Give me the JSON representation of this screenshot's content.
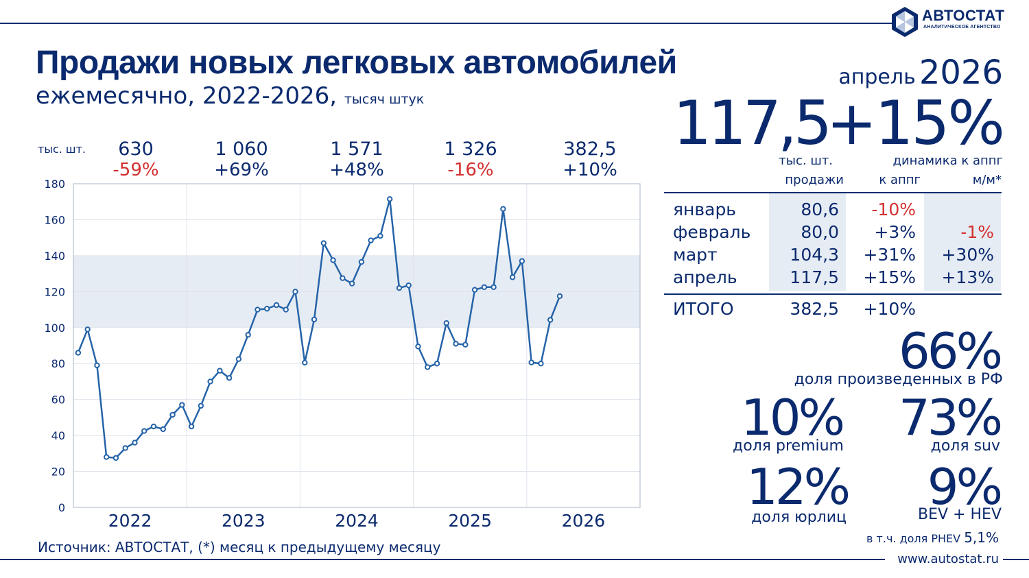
{
  "brand": {
    "name": "АВТОСТАТ",
    "tagline": "АНАЛИТИЧЕСКОЕ АГЕНТСТВО",
    "color": "#0b2a6e",
    "accent": "#2563a8",
    "negative_color": "#d32f2f"
  },
  "header": {
    "title": "Продажи новых легковых автомобилей",
    "subtitle": "ежемесячно, 2022-2026,",
    "units": "тысяч штук",
    "period_month": "апрель",
    "period_year": "2026"
  },
  "year_totals": {
    "units": "тыс. шт.",
    "items": [
      {
        "value": "630",
        "change": "-59%",
        "negative": true
      },
      {
        "value": "1 060",
        "change": "+69%",
        "negative": false
      },
      {
        "value": "1 571",
        "change": "+48%",
        "negative": false
      },
      {
        "value": "1 326",
        "change": "-16%",
        "negative": true
      },
      {
        "value": "382,5",
        "change": "+10%",
        "negative": false
      }
    ]
  },
  "chart_data": {
    "type": "line",
    "ylim": [
      0,
      180
    ],
    "y_ticks": [
      "0",
      "20",
      "40",
      "60",
      "80",
      "100",
      "120",
      "140",
      "160",
      "180"
    ],
    "year_labels": [
      "2022",
      "2023",
      "2024",
      "2025",
      "2026"
    ],
    "band": [
      100,
      140
    ],
    "grid": true,
    "values": [
      86,
      99,
      79,
      28,
      27.5,
      33,
      36,
      42.5,
      45,
      43.5,
      51.5,
      57,
      45,
      56.5,
      70,
      76,
      72,
      82.5,
      96,
      110,
      110.5,
      112.5,
      110,
      120,
      80.5,
      104.5,
      147,
      137.5,
      127.5,
      124.5,
      136.5,
      148.5,
      151,
      171.5,
      122,
      123.5,
      89.5,
      78,
      80,
      102.5,
      91,
      90.5,
      121,
      122.5,
      122.5,
      166,
      128,
      137,
      80.6,
      80.0,
      104.3,
      117.5
    ]
  },
  "kpi": {
    "sales_value": "117,5",
    "sales_units": "тыс. шт.",
    "growth_value": "+15%",
    "growth_label": "динамика к аппг"
  },
  "table": {
    "headers": [
      "продажи",
      "к аппг",
      "м/м*"
    ],
    "rows": [
      {
        "name": "январь",
        "value": "80,6",
        "yoy": "-10%",
        "yoy_negative": true,
        "mom": "",
        "mom_negative": false
      },
      {
        "name": "февраль",
        "value": "80,0",
        "yoy": "+3%",
        "yoy_negative": false,
        "mom": "-1%",
        "mom_negative": true
      },
      {
        "name": "март",
        "value": "104,3",
        "yoy": "+31%",
        "yoy_negative": false,
        "mom": "+30%",
        "mom_negative": false
      },
      {
        "name": "апрель",
        "value": "117,5",
        "yoy": "+15%",
        "yoy_negative": false,
        "mom": "+13%",
        "mom_negative": false
      }
    ],
    "total": {
      "name": "ИТОГО",
      "value": "382,5",
      "yoy": "+10%"
    }
  },
  "shares": {
    "domestic": {
      "value": "66",
      "label": "доля произведенных в РФ"
    },
    "premium": {
      "value": "10",
      "label": "доля premium"
    },
    "suv": {
      "value": "73",
      "label": "доля suv"
    },
    "legal": {
      "value": "12",
      "label": "доля юрлиц"
    },
    "bev_hev": {
      "value": "9",
      "label": "BEV + HEV"
    },
    "phev_label": "в т.ч. доля PHEV",
    "phev_value": "5,1%",
    "pct_sign": "%"
  },
  "footer": {
    "source": "Источник: АВТОСТАТ, (*) месяц к предыдущему месяцу",
    "site": "www.autostat.ru"
  }
}
